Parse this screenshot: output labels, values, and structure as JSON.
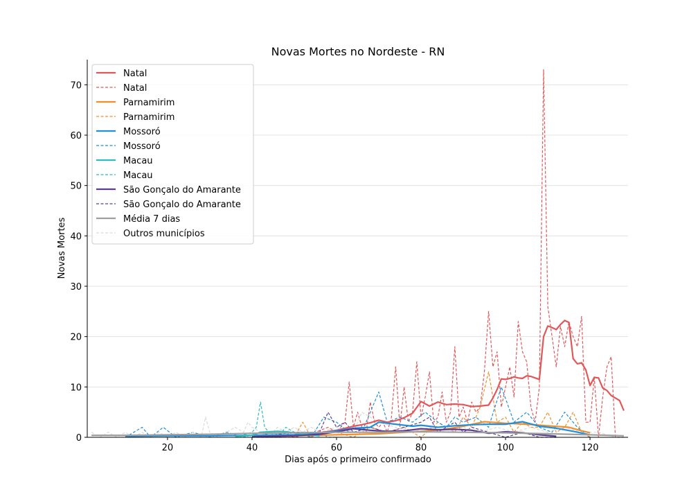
{
  "chart_data": {
    "type": "line",
    "title": "Novas Mortes no Nordeste - RN",
    "xlabel": "Dias após o primeiro confirmado",
    "ylabel": "Novas Mortes",
    "xlim": [
      1,
      129
    ],
    "ylim": [
      0,
      75
    ],
    "xticks": [
      20,
      40,
      60,
      80,
      100,
      120
    ],
    "yticks": [
      0,
      10,
      20,
      30,
      40,
      50,
      60,
      70
    ],
    "grid": "horizontal",
    "legend_position": "top-left",
    "legend": [
      {
        "label": "Natal",
        "color": "#e15759",
        "style": "solid"
      },
      {
        "label": "Natal",
        "color": "#e15759",
        "style": "dashed"
      },
      {
        "label": "Parnamirim",
        "color": "#f28e2b",
        "style": "solid"
      },
      {
        "label": "Parnamirim",
        "color": "#f28e2b",
        "style": "dashed"
      },
      {
        "label": "Mossoró",
        "color": "#1f8fdb",
        "style": "solid"
      },
      {
        "label": "Mossoró",
        "color": "#1f8fdb",
        "style": "dashed"
      },
      {
        "label": "Macau",
        "color": "#2bbcc0",
        "style": "solid"
      },
      {
        "label": "Macau",
        "color": "#2bbcc0",
        "style": "dashed"
      },
      {
        "label": "São Gonçalo do Amarante",
        "color": "#5a3d92",
        "style": "solid"
      },
      {
        "label": "São Gonçalo do Amarante",
        "color": "#5a3d92",
        "style": "dashed"
      },
      {
        "label": "Média 7 dias",
        "color": "#9e9e9e",
        "style": "solid"
      },
      {
        "label": "Outros municípios",
        "color": "#d9d9d9",
        "style": "dashed"
      }
    ],
    "series": [
      {
        "name": "Natal",
        "kind": "daily",
        "color": "#e15759",
        "style": "dashed",
        "x": [
          40,
          45,
          50,
          55,
          58,
          60,
          62,
          63,
          64,
          65,
          66,
          67,
          68,
          69,
          70,
          71,
          72,
          73,
          74,
          75,
          76,
          77,
          78,
          79,
          80,
          81,
          82,
          83,
          84,
          85,
          86,
          87,
          88,
          89,
          90,
          91,
          92,
          93,
          94,
          95,
          96,
          97,
          98,
          99,
          100,
          101,
          102,
          103,
          104,
          105,
          106,
          107,
          108,
          109,
          110,
          111,
          112,
          113,
          114,
          115,
          116,
          117,
          118,
          119,
          120,
          121,
          122,
          123,
          124,
          125,
          126,
          127,
          128
        ],
        "y": [
          0,
          1,
          0,
          1,
          2,
          1,
          3,
          11,
          2,
          5,
          2,
          1,
          7,
          3,
          2,
          3,
          1,
          4,
          14,
          2,
          10,
          3,
          5,
          15,
          4,
          8,
          13,
          3,
          4,
          9,
          3,
          5,
          18,
          4,
          6,
          3,
          7,
          5,
          6,
          13,
          25,
          14,
          17,
          6,
          10,
          14,
          8,
          23,
          17,
          15,
          6,
          3,
          10,
          73,
          26,
          20,
          14,
          22,
          18,
          23,
          20,
          18,
          24,
          3,
          3,
          12,
          0,
          8,
          14,
          16,
          0,
          0,
          0
        ]
      },
      {
        "name": "Natal",
        "kind": "avg",
        "color": "#e15759",
        "style": "solid",
        "x": [
          40,
          50,
          55,
          60,
          62,
          64,
          66,
          68,
          70,
          72,
          74,
          76,
          78,
          80,
          82,
          84,
          86,
          88,
          90,
          92,
          94,
          96,
          97,
          98,
          99,
          100,
          101,
          102,
          103,
          104,
          105,
          106,
          107,
          108,
          109,
          110,
          111,
          112,
          113,
          114,
          115,
          116,
          117,
          118,
          119,
          120,
          121,
          122,
          123,
          124,
          125,
          126,
          127,
          128
        ],
        "y": [
          0.3,
          0.5,
          0.8,
          1.4,
          1.8,
          2.2,
          2.5,
          2.9,
          3.4,
          3.0,
          3.3,
          3.9,
          4.8,
          7.1,
          6.2,
          7.0,
          6.5,
          6.6,
          6.5,
          6.1,
          6.2,
          6.4,
          7.8,
          9.5,
          11.6,
          11.5,
          11.7,
          12.0,
          11.8,
          11.7,
          12.2,
          12.1,
          11.8,
          11.5,
          20.0,
          22.1,
          21.8,
          21.4,
          22.4,
          23.2,
          22.8,
          15.6,
          14.6,
          14.8,
          13.4,
          10.3,
          11.9,
          11.8,
          9.8,
          9.3,
          8.3,
          7.8,
          7.3,
          5.3
        ]
      },
      {
        "name": "Parnamirim",
        "kind": "daily",
        "color": "#f28e2b",
        "style": "dashed",
        "x": [
          40,
          50,
          52,
          54,
          56,
          60,
          64,
          68,
          72,
          76,
          80,
          84,
          88,
          90,
          92,
          94,
          96,
          98,
          100,
          102,
          104,
          106,
          108,
          110,
          112,
          114,
          116,
          118,
          120
        ],
        "y": [
          0,
          0,
          3,
          0,
          1,
          1,
          0,
          2,
          1,
          2,
          0,
          3,
          1,
          4,
          2,
          6,
          13,
          3,
          4,
          1,
          3,
          2,
          2,
          5,
          1,
          2,
          5,
          1,
          0
        ]
      },
      {
        "name": "Parnamirim",
        "kind": "avg",
        "color": "#f28e2b",
        "style": "solid",
        "x": [
          50,
          60,
          70,
          80,
          85,
          90,
          95,
          100,
          105,
          110,
          115,
          118,
          120
        ],
        "y": [
          0.3,
          0.5,
          0.7,
          1.2,
          1.5,
          2.2,
          3.1,
          2.8,
          2.6,
          2.3,
          2.0,
          1.3,
          0.9
        ]
      },
      {
        "name": "Mossoró",
        "kind": "daily",
        "color": "#1f8fdb",
        "style": "dashed",
        "x": [
          10,
          14,
          16,
          19,
          22,
          26,
          30,
          34,
          38,
          42,
          46,
          50,
          54,
          57,
          60,
          63,
          66,
          70,
          72,
          75,
          78,
          81,
          84,
          86,
          88,
          90,
          93,
          96,
          99,
          102,
          105,
          108,
          111,
          114,
          117,
          120
        ],
        "y": [
          0,
          2,
          0,
          2,
          0,
          1,
          0,
          1,
          0,
          1,
          0,
          1,
          0,
          4,
          3,
          1,
          1,
          9,
          3,
          4,
          3,
          5,
          3,
          2,
          4,
          3,
          4,
          2,
          10,
          3,
          5,
          2,
          1,
          5,
          2,
          0
        ]
      },
      {
        "name": "Mossoró",
        "kind": "avg",
        "color": "#1f8fdb",
        "style": "solid",
        "x": [
          10,
          20,
          30,
          40,
          50,
          56,
          60,
          64,
          68,
          70,
          74,
          78,
          80,
          84,
          88,
          92,
          96,
          100,
          104,
          108,
          112,
          116,
          120
        ],
        "y": [
          0.2,
          0.3,
          0.3,
          0.4,
          0.5,
          0.8,
          1.3,
          1.8,
          2.0,
          3.0,
          2.6,
          2.2,
          2.4,
          2.0,
          2.3,
          2.5,
          2.6,
          2.6,
          3.1,
          2.2,
          1.8,
          1.2,
          0.5
        ]
      },
      {
        "name": "Macau",
        "kind": "daily",
        "color": "#2bbcc0",
        "style": "dashed",
        "x": [
          36,
          40,
          41,
          42,
          43,
          44,
          46,
          48,
          50,
          52,
          54,
          56,
          58,
          60
        ],
        "y": [
          0,
          1,
          2,
          7,
          2,
          1,
          0,
          2,
          1,
          1,
          0,
          1,
          0,
          0
        ]
      },
      {
        "name": "Macau",
        "kind": "avg",
        "color": "#2bbcc0",
        "style": "solid",
        "x": [
          36,
          40,
          42,
          44,
          46,
          48,
          50,
          52,
          54,
          56
        ],
        "y": [
          0.2,
          0.4,
          1.0,
          1.1,
          1.2,
          1.1,
          0.9,
          0.7,
          0.5,
          0.3
        ]
      },
      {
        "name": "São Gonçalo do Amarante",
        "kind": "daily",
        "color": "#5a3d92",
        "style": "dashed",
        "x": [
          40,
          50,
          56,
          58,
          60,
          62,
          64,
          68,
          72,
          76,
          80,
          82,
          84,
          86,
          88,
          90,
          92,
          96,
          100,
          104,
          108,
          112
        ],
        "y": [
          0,
          1,
          1,
          5,
          2,
          3,
          1,
          2,
          1,
          2,
          3,
          4,
          1,
          2,
          3,
          1,
          2,
          1,
          0,
          1,
          0,
          0
        ]
      },
      {
        "name": "São Gonçalo do Amarante",
        "kind": "avg",
        "color": "#5a3d92",
        "style": "solid",
        "x": [
          40,
          50,
          56,
          60,
          64,
          68,
          72,
          76,
          80,
          84,
          88,
          92,
          96,
          100,
          104,
          108,
          112
        ],
        "y": [
          0.1,
          0.3,
          0.6,
          1.1,
          1.7,
          1.4,
          1.2,
          1.3,
          1.7,
          1.5,
          1.6,
          1.4,
          0.8,
          1.1,
          0.9,
          0.5,
          0.2
        ]
      },
      {
        "name": "Outros municípios",
        "kind": "daily",
        "color": "#d9d9d9",
        "style": "dashed",
        "x": [
          2,
          4,
          6,
          8,
          10,
          12,
          14,
          16,
          18,
          20,
          22,
          24,
          26,
          28,
          29,
          30,
          32,
          34,
          36,
          38,
          39,
          40,
          42,
          44,
          46,
          48,
          50,
          52,
          54,
          56,
          60,
          64,
          66,
          70,
          74,
          78,
          82,
          86,
          90,
          94,
          98,
          102,
          106,
          110,
          114,
          118,
          122,
          126
        ],
        "y": [
          1,
          0,
          1,
          0,
          1,
          0,
          1,
          0,
          1,
          0,
          1,
          0,
          1,
          0,
          4,
          1,
          0,
          1,
          2,
          1,
          3,
          2,
          1,
          0,
          2,
          1,
          2,
          1,
          2,
          1,
          2,
          1,
          5,
          3,
          2,
          1,
          2,
          1,
          2,
          1,
          2,
          1,
          2,
          1,
          2,
          1,
          1,
          0
        ]
      },
      {
        "name": "Média 7 dias",
        "kind": "avg",
        "color": "#9e9e9e",
        "style": "solid",
        "x": [
          2,
          10,
          20,
          30,
          40,
          50,
          60,
          70,
          80,
          90,
          100,
          110,
          120,
          128
        ],
        "y": [
          0.4,
          0.4,
          0.5,
          0.6,
          0.8,
          0.9,
          1.0,
          1.0,
          1.1,
          1.0,
          0.9,
          0.7,
          0.5,
          0.3
        ]
      }
    ]
  }
}
